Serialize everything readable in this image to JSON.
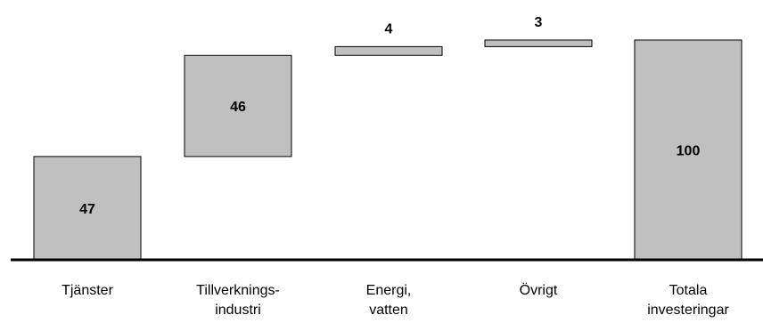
{
  "chart_data": {
    "type": "bar",
    "subtype": "waterfall",
    "title": "",
    "xlabel": "",
    "ylabel": "",
    "ylim": [
      0,
      100
    ],
    "grid": false,
    "legend": "none",
    "bar_color": "#c0c0c0",
    "categories": [
      [
        "Tjänster"
      ],
      [
        "Tillverknings-",
        "industri"
      ],
      [
        "Energi,",
        "vatten"
      ],
      [
        "Övrigt"
      ],
      [
        "Totala",
        "investeringar"
      ]
    ],
    "values": [
      47,
      46,
      4,
      3,
      100
    ],
    "data_labels": [
      "47",
      "46",
      "4",
      "3",
      "100"
    ],
    "label_positions": [
      "inside",
      "inside",
      "above",
      "above",
      "inside"
    ],
    "is_total": [
      false,
      false,
      false,
      false,
      true
    ]
  }
}
